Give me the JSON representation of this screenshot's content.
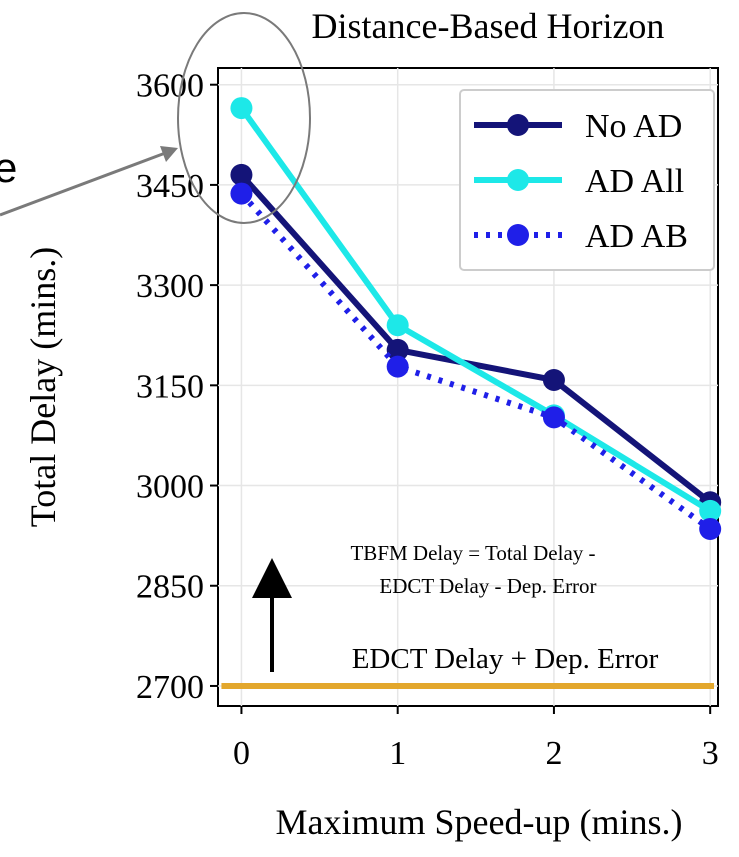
{
  "chart_data": {
    "type": "line",
    "title": "Distance-Based Horizon",
    "xlabel": "Maximum Speed-up (mins.)",
    "ylabel": "Total Delay (mins.)",
    "x": [
      0,
      1,
      2,
      3
    ],
    "xlim": [
      -0.15,
      3.05
    ],
    "ylim": [
      2670,
      3625
    ],
    "xticks": [
      "0",
      "1",
      "2",
      "3"
    ],
    "yticks": [
      "2700",
      "2850",
      "3000",
      "3150",
      "3300",
      "3450",
      "3600"
    ],
    "grid": true,
    "legend_position": "top-right",
    "series": [
      {
        "name": "No AD",
        "values": [
          3465,
          3203,
          3158,
          2975
        ],
        "color": "#141478",
        "style": "solid"
      },
      {
        "name": "AD All",
        "values": [
          3565,
          3240,
          3105,
          2962
        ],
        "color": "#1de8e8",
        "style": "solid"
      },
      {
        "name": "AD AB",
        "values": [
          3437,
          3178,
          3102,
          2935
        ],
        "color": "#1f1fe8",
        "style": "dotted"
      }
    ],
    "reference_line": {
      "value": 2700,
      "label": "EDCT Delay + Dep. Error",
      "color": "#e3a72c"
    },
    "annotation": {
      "line1": "TBFM Delay = Total Delay -",
      "line2": "EDCT Delay - Dep. Error"
    },
    "left_fragment_text": "e"
  }
}
